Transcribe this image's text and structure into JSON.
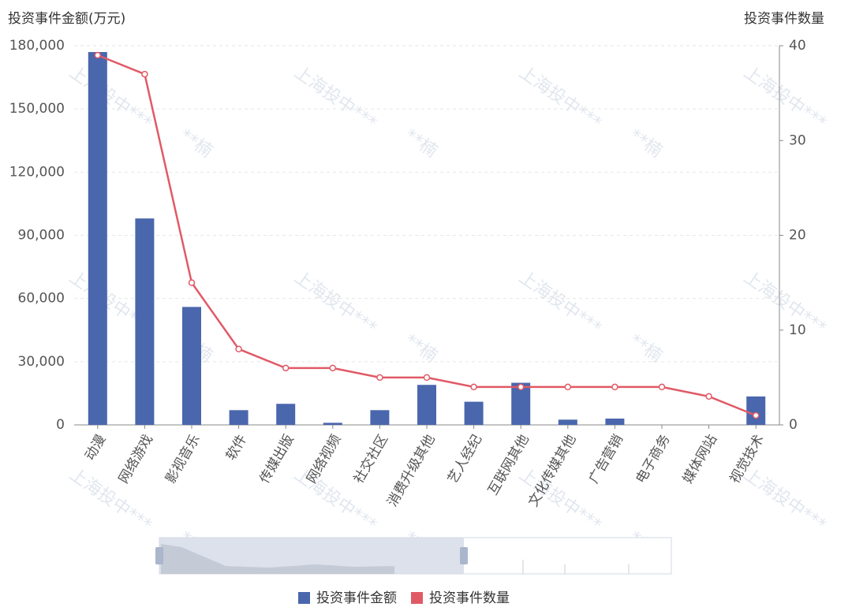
{
  "chart_data": {
    "type": "bar",
    "y_title": "投资事件金额(万元)",
    "y2_title": "投资事件数量",
    "watermark": [
      "上海投中***",
      "**楠"
    ],
    "categories": [
      "动漫",
      "网络游戏",
      "影视音乐",
      "软件",
      "传媒出版",
      "网络视频",
      "社交社区",
      "消费升级其他",
      "艺人经纪",
      "互联网其他",
      "文化传媒其他",
      "广告营销",
      "电子商务",
      "媒体网站",
      "视觉技术"
    ],
    "series": [
      {
        "name": "投资事件金额",
        "type": "bar",
        "axis": "y",
        "color": "#4a67ad",
        "values": [
          177000,
          98000,
          56000,
          7000,
          10000,
          1000,
          7000,
          19000,
          11000,
          20000,
          2500,
          3000,
          0,
          0,
          13500
        ]
      },
      {
        "name": "投资事件数量",
        "type": "line",
        "axis": "y2",
        "color": "#e05a66",
        "values": [
          39,
          37,
          15,
          8,
          6,
          6,
          5,
          5,
          4,
          4,
          4,
          4,
          4,
          3,
          1
        ]
      }
    ],
    "ylim": [
      0,
      180000
    ],
    "yticks": [
      0,
      {
        "value": 30000,
        "label": "30,000"
      },
      {
        "value": 60000,
        "label": "60,000"
      },
      {
        "value": 90000,
        "label": "90,000"
      },
      {
        "value": 120000,
        "label": "120,000"
      },
      {
        "value": 150000,
        "label": "150,000"
      },
      {
        "value": 180000,
        "label": "180,000"
      }
    ],
    "y2lim": [
      0,
      40
    ],
    "y2ticks": [
      0,
      10,
      20,
      30,
      40
    ],
    "grid": true
  }
}
